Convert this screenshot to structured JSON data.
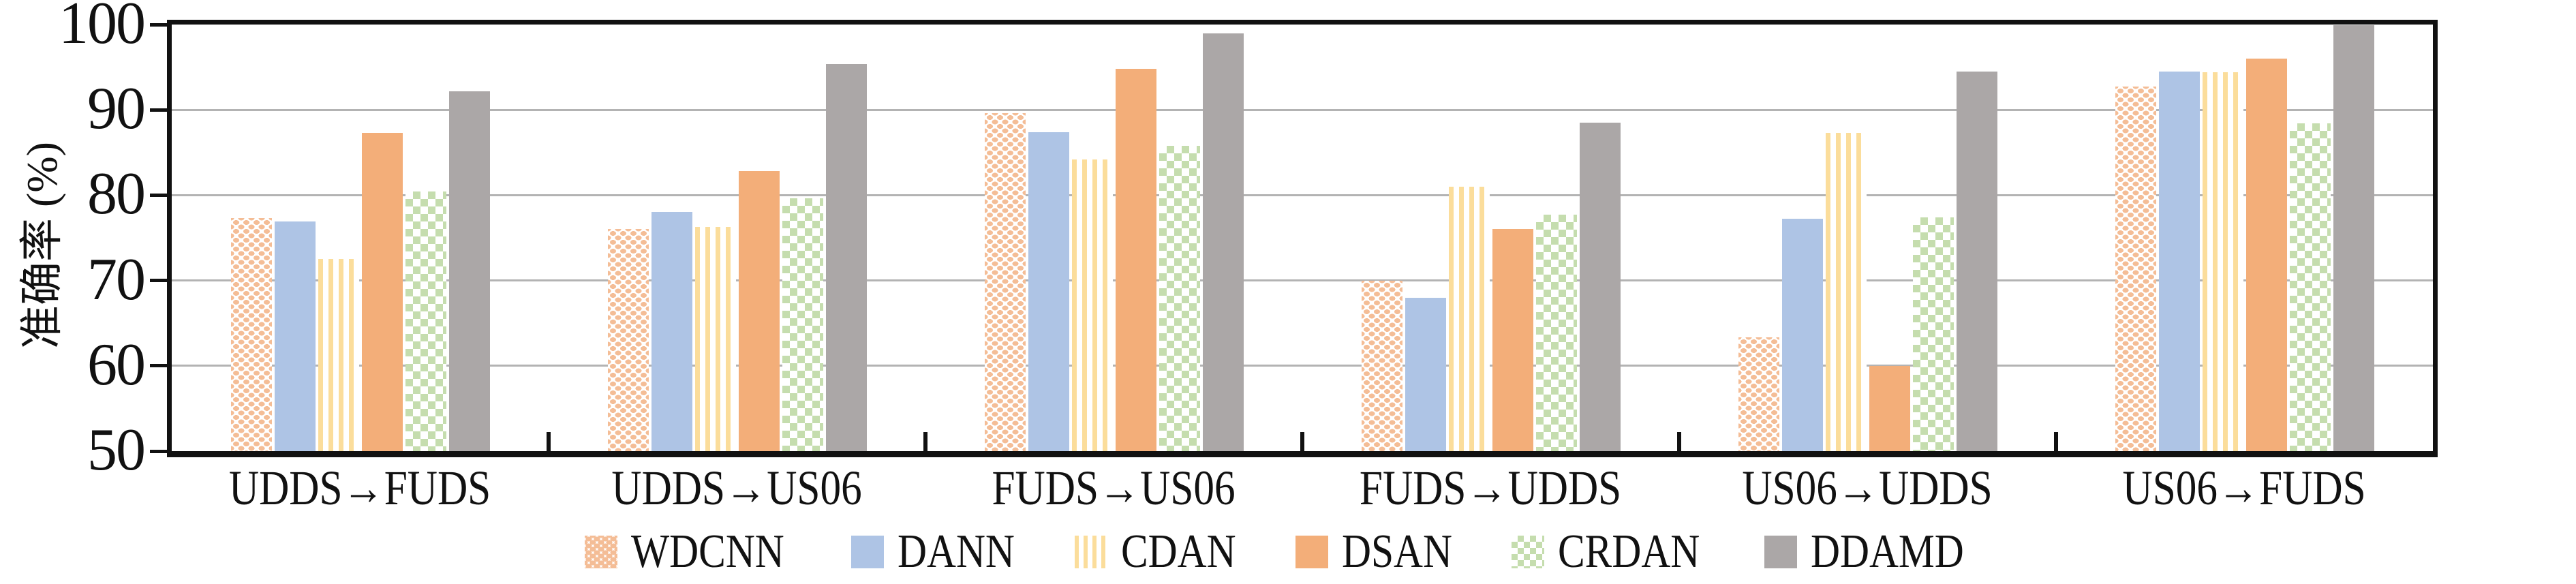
{
  "chart_data": {
    "type": "bar",
    "title": "",
    "ylabel": "准确率 (%)",
    "xlabel": "",
    "ylim": [
      50,
      100
    ],
    "yticks": [
      50,
      60,
      70,
      80,
      90,
      100
    ],
    "grid": "horizontal",
    "gridline_values": [
      60,
      70,
      80,
      90
    ],
    "legend_position": "bottom-center",
    "axis_color": "#111111",
    "gridline_color": "#b3b3b3",
    "categories": [
      "UDDS→FUDS",
      "UDDS→US06",
      "FUDS→US06",
      "FUDS→UDDS",
      "US06→UDDS",
      "US06→FUDS"
    ],
    "series": [
      {
        "name": "WDCNN",
        "pattern": "dots",
        "color": "#F4BD96",
        "values": [
          77.3,
          76.0,
          89.6,
          70.0,
          63.3,
          92.7
        ]
      },
      {
        "name": "DANN",
        "pattern": "solid",
        "color": "#AEC4E5",
        "values": [
          76.9,
          78.0,
          87.4,
          68.0,
          77.2,
          94.5
        ]
      },
      {
        "name": "CDAN",
        "pattern": "vstripes",
        "color": "#FBDD9B",
        "values": [
          72.5,
          76.3,
          84.2,
          81.0,
          87.3,
          94.4
        ]
      },
      {
        "name": "DSAN",
        "pattern": "solid",
        "color": "#F3AE79",
        "values": [
          87.3,
          82.8,
          94.8,
          76.0,
          60.0,
          96.0
        ]
      },
      {
        "name": "CRDAN",
        "pattern": "checker",
        "color": "#C5DDAE",
        "values": [
          80.4,
          79.6,
          85.8,
          77.7,
          77.4,
          88.4
        ]
      },
      {
        "name": "DDAMD",
        "pattern": "solid",
        "color": "#ABA7A7",
        "values": [
          92.2,
          95.4,
          99.0,
          88.5,
          94.5,
          99.9
        ]
      }
    ]
  }
}
